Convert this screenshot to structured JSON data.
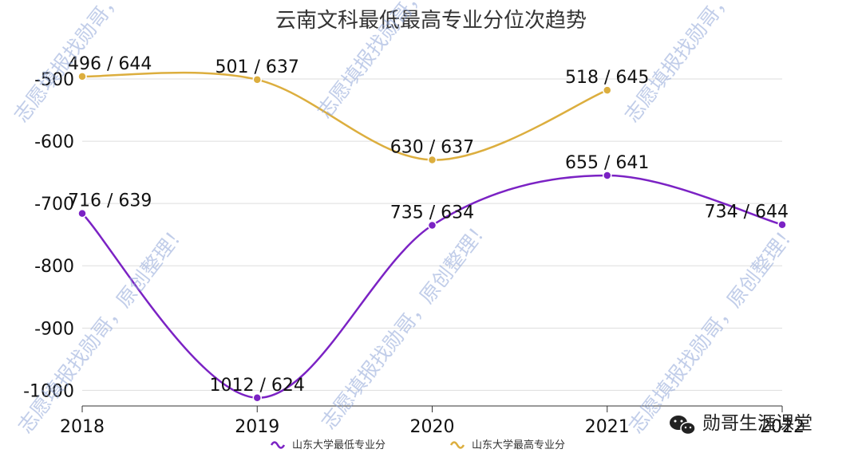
{
  "chart_data": {
    "type": "line",
    "title": "云南文科最低最高专业分位次趋势",
    "xlabel": "",
    "ylabel": "",
    "categories": [
      "2018",
      "2019",
      "2020",
      "2021",
      "2022"
    ],
    "ylim": [
      -1020,
      -450
    ],
    "yticks": [
      -500,
      -600,
      -700,
      -800,
      -900,
      -1000
    ],
    "ytick_labels": [
      "-500",
      "-600",
      "-700",
      "-800",
      "-900",
      "-1000"
    ],
    "grid": true,
    "smooth": true,
    "legend_position": "bottom",
    "series": [
      {
        "name": "山东大学最低专业分",
        "color": "#7b22c4",
        "values": [
          -716,
          -1012,
          -735,
          -655,
          -734
        ],
        "labels": [
          "716 / 639",
          "1012 / 624",
          "735 / 634",
          "655 / 641",
          "734 / 644"
        ]
      },
      {
        "name": "山东大学最高专业分",
        "color": "#dcae3e",
        "values": [
          -496,
          -501,
          -630,
          -518,
          null
        ],
        "labels": [
          "496 / 644",
          "501 / 637",
          "630 / 637",
          "518 / 645",
          null
        ]
      }
    ]
  },
  "watermark": "志愿填报找勋哥，原创整理！",
  "brand": {
    "icon": "wechat-icon",
    "text": "勋哥生涯课堂"
  },
  "colors": {
    "grid": "#dddddd",
    "axis": "#333333",
    "watermark": "#8fa6d8"
  }
}
